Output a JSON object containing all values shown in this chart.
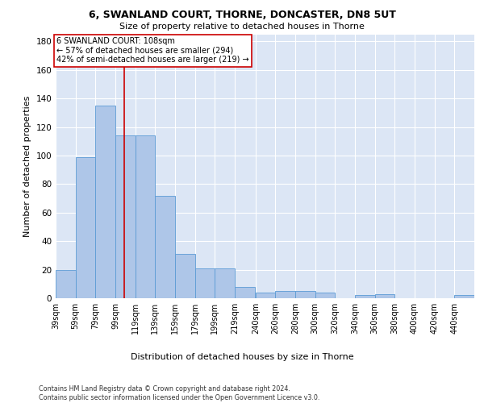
{
  "title1": "6, SWANLAND COURT, THORNE, DONCASTER, DN8 5UT",
  "title2": "Size of property relative to detached houses in Thorne",
  "xlabel": "Distribution of detached houses by size in Thorne",
  "ylabel": "Number of detached properties",
  "categories": [
    "39sqm",
    "59sqm",
    "79sqm",
    "99sqm",
    "119sqm",
    "139sqm",
    "159sqm",
    "179sqm",
    "199sqm",
    "219sqm",
    "240sqm",
    "260sqm",
    "280sqm",
    "300sqm",
    "320sqm",
    "340sqm",
    "360sqm",
    "380sqm",
    "400sqm",
    "420sqm",
    "440sqm"
  ],
  "values": [
    20,
    99,
    135,
    114,
    114,
    72,
    31,
    21,
    21,
    8,
    4,
    5,
    5,
    4,
    0,
    2,
    3,
    0,
    0,
    0,
    2
  ],
  "bar_color": "#aec6e8",
  "bar_edge_color": "#5b9bd5",
  "vline_color": "#cc0000",
  "annotation_text": "6 SWANLAND COURT: 108sqm\n← 57% of detached houses are smaller (294)\n42% of semi-detached houses are larger (219) →",
  "annotation_box_color": "#ffffff",
  "annotation_box_edge": "#cc0000",
  "ylim": [
    0,
    185
  ],
  "yticks": [
    0,
    20,
    40,
    60,
    80,
    100,
    120,
    140,
    160,
    180
  ],
  "background_color": "#dce6f5",
  "grid_color": "#ffffff",
  "footer": "Contains HM Land Registry data © Crown copyright and database right 2024.\nContains public sector information licensed under the Open Government Licence v3.0.",
  "bin_starts": [
    39,
    59,
    79,
    99,
    119,
    139,
    159,
    179,
    199,
    219,
    240,
    260,
    280,
    300,
    320,
    340,
    360,
    380,
    400,
    420,
    440
  ],
  "bin_width": 20,
  "vline_x": 108
}
